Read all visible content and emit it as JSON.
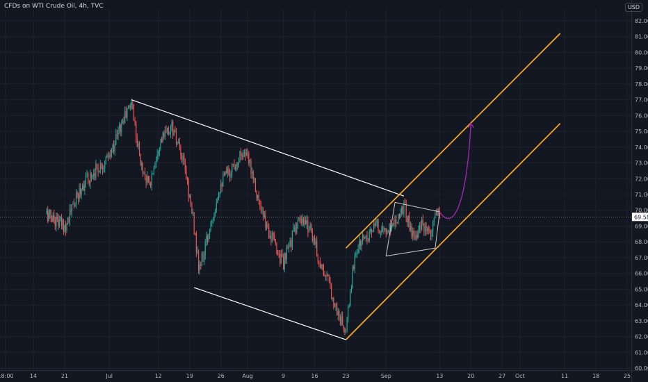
{
  "header": {
    "title": "CFDs on WTI Crude Oil, 4h, TVC",
    "currency": "USD"
  },
  "colors": {
    "background": "#131722",
    "grid": "#1e222d",
    "up": "#26a69a",
    "down": "#ef5350",
    "trendline": "#ffffff",
    "channel": "#f5a623",
    "projection": "#9c27b0",
    "price_label_bg": "#ffffff"
  },
  "chart_data": {
    "type": "candlestick",
    "title": "CFDs on WTI Crude Oil, 4h, TVC",
    "y_axis": {
      "ylim": [
        60.0,
        82.5
      ],
      "ticks": [
        "82.00",
        "81.00",
        "80.00",
        "79.00",
        "78.00",
        "77.00",
        "76.00",
        "75.00",
        "74.00",
        "73.00",
        "72.00",
        "71.00",
        "70.00",
        "69.00",
        "68.00",
        "67.00",
        "66.00",
        "65.00",
        "64.00",
        "63.00",
        "62.00",
        "61.00",
        "60.00"
      ],
      "current_price": 69.58,
      "current_price_label": "69.58"
    },
    "x_axis": {
      "labels": [
        "18:00",
        "14",
        "21",
        "Jul",
        "12",
        "19",
        "26",
        "Aug",
        "9",
        "16",
        "23",
        "Sep",
        "13",
        "20",
        "27",
        "Oct",
        "11",
        "18",
        "25"
      ]
    },
    "grid": true,
    "series_anchors": [
      {
        "date": "Jun 16 18:00",
        "price": 69.8
      },
      {
        "date": "Jun 21",
        "price": 69.0
      },
      {
        "date": "Jun 25",
        "price": 71.6
      },
      {
        "date": "Jun 28",
        "price": 72.6
      },
      {
        "date": "Jul 01",
        "price": 73.3
      },
      {
        "date": "Jul 03",
        "price": 75.0
      },
      {
        "date": "Jul 06",
        "price": 76.9
      },
      {
        "date": "Jul 08",
        "price": 73.0
      },
      {
        "date": "Jul 10",
        "price": 71.5
      },
      {
        "date": "Jul 12",
        "price": 74.2
      },
      {
        "date": "Jul 15",
        "price": 75.3
      },
      {
        "date": "Jul 18",
        "price": 72.6
      },
      {
        "date": "Jul 20",
        "price": 69.0
      },
      {
        "date": "Jul 21",
        "price": 66.3
      },
      {
        "date": "Jul 22",
        "price": 67.0
      },
      {
        "date": "Jul 24",
        "price": 69.6
      },
      {
        "date": "Jul 26",
        "price": 71.8
      },
      {
        "date": "Jul 28",
        "price": 72.5
      },
      {
        "date": "Jul 31",
        "price": 73.8
      },
      {
        "date": "Aug 02",
        "price": 72.6
      },
      {
        "date": "Aug 04",
        "price": 69.8
      },
      {
        "date": "Aug 06",
        "price": 68.5
      },
      {
        "date": "Aug 09",
        "price": 66.6
      },
      {
        "date": "Aug 12",
        "price": 69.2
      },
      {
        "date": "Aug 15",
        "price": 69.0
      },
      {
        "date": "Aug 17",
        "price": 66.8
      },
      {
        "date": "Aug 19",
        "price": 65.5
      },
      {
        "date": "Aug 21",
        "price": 63.6
      },
      {
        "date": "Aug 23",
        "price": 62.2
      },
      {
        "date": "Aug 24",
        "price": 64.8
      },
      {
        "date": "Aug 25",
        "price": 67.2
      },
      {
        "date": "Aug 27",
        "price": 68.3
      },
      {
        "date": "Aug 30",
        "price": 69.0
      },
      {
        "date": "Sep 01",
        "price": 68.6
      },
      {
        "date": "Sep 03",
        "price": 69.4
      },
      {
        "date": "Sep 05",
        "price": 70.3
      },
      {
        "date": "Sep 07",
        "price": 68.4
      },
      {
        "date": "Sep 09",
        "price": 69.0
      },
      {
        "date": "Sep 11",
        "price": 68.2
      },
      {
        "date": "Sep 12",
        "price": 69.8
      },
      {
        "date": "Sep 13",
        "price": 69.58
      }
    ],
    "drawings": {
      "descending_channel_upper": [
        {
          "date": "Jul 06",
          "price": 77.0
        },
        {
          "date": "Sep 05",
          "price": 70.9
        }
      ],
      "descending_channel_lower": [
        {
          "date": "Jul 20",
          "price": 65.1
        },
        {
          "date": "Aug 23",
          "price": 61.8
        }
      ],
      "triangle": [
        {
          "date": "Sep 03",
          "price": 70.5
        },
        {
          "date": "Sep 13",
          "price": 69.9
        },
        {
          "date": "Sep 12",
          "price": 67.6
        },
        {
          "date": "Sep 01",
          "price": 67.1
        }
      ],
      "ascending_channel_upper": [
        {
          "date": "Aug 23",
          "price": 67.6
        },
        {
          "date": "Oct 10",
          "price": 81.2
        }
      ],
      "ascending_channel_lower": [
        {
          "date": "Aug 23",
          "price": 61.8
        },
        {
          "date": "Oct 10",
          "price": 75.5
        }
      ],
      "projection_path": [
        {
          "date": "Sep 13",
          "price": 69.9
        },
        {
          "date": "Sep 16",
          "price": 69.4
        },
        {
          "date": "Sep 19",
          "price": 72.0
        },
        {
          "date": "Sep 20",
          "price": 75.5
        }
      ]
    }
  }
}
